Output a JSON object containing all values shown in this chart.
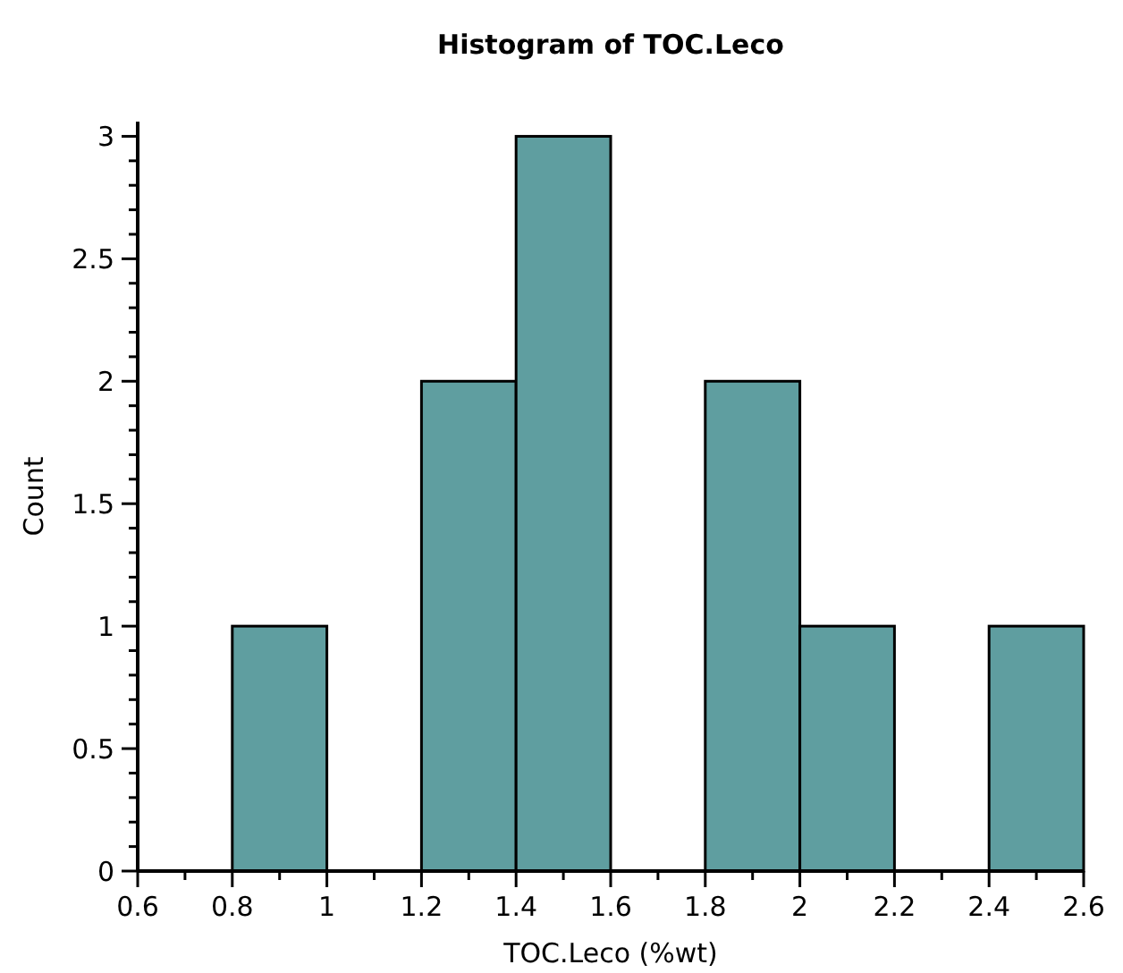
{
  "chart_data": {
    "type": "histogram",
    "title": "Histogram of TOC.Leco",
    "xlabel": "TOC.Leco (%wt)",
    "ylabel": "Count",
    "bins": [
      0.8,
      1,
      1.2,
      1.4,
      1.6,
      1.8,
      2,
      2.2,
      2.4,
      2.6
    ],
    "values": [
      1,
      0,
      2,
      3,
      0,
      2,
      1,
      0,
      1
    ],
    "color": "#5f9ea0",
    "xlim": [
      0.6,
      2.6
    ],
    "xticks": [
      0.6,
      {
        "value": 0.7,
        "label": null
      },
      0.8,
      {
        "value": 0.9,
        "label": null
      },
      1,
      {
        "value": 1.1,
        "label": null
      },
      1.2,
      {
        "value": 1.3,
        "label": null
      },
      1.4,
      {
        "value": 1.5,
        "label": null
      },
      1.6,
      {
        "value": 1.7,
        "label": null
      },
      1.8,
      {
        "value": 1.9,
        "label": null
      },
      2,
      {
        "value": 2.1,
        "label": null
      },
      2.2,
      {
        "value": 2.3,
        "label": null
      },
      2.4,
      {
        "value": 2.5,
        "label": null
      },
      2.6
    ],
    "ylim": [
      0,
      3.06
    ],
    "yticks": [
      0,
      {
        "value": 0.1,
        "label": null
      },
      {
        "value": 0.2,
        "label": null
      },
      {
        "value": 0.3,
        "label": null
      },
      {
        "value": 0.4,
        "label": null
      },
      0.5,
      {
        "value": 0.6,
        "label": null
      },
      {
        "value": 0.7,
        "label": null
      },
      {
        "value": 0.8,
        "label": null
      },
      {
        "value": 0.9,
        "label": null
      },
      1,
      {
        "value": 1.1,
        "label": null
      },
      {
        "value": 1.2,
        "label": null
      },
      {
        "value": 1.3,
        "label": null
      },
      {
        "value": 1.4,
        "label": null
      },
      1.5,
      {
        "value": 1.6,
        "label": null
      },
      {
        "value": 1.7,
        "label": null
      },
      {
        "value": 1.8,
        "label": null
      },
      {
        "value": 1.9,
        "label": null
      },
      2,
      {
        "value": 2.1,
        "label": null
      },
      {
        "value": 2.2,
        "label": null
      },
      {
        "value": 2.3,
        "label": null
      },
      {
        "value": 2.4,
        "label": null
      },
      2.5,
      {
        "value": 2.6,
        "label": null
      },
      {
        "value": 2.7,
        "label": null
      },
      {
        "value": 2.8,
        "label": null
      },
      {
        "value": 2.9,
        "label": null
      },
      3
    ],
    "grid": false
  }
}
